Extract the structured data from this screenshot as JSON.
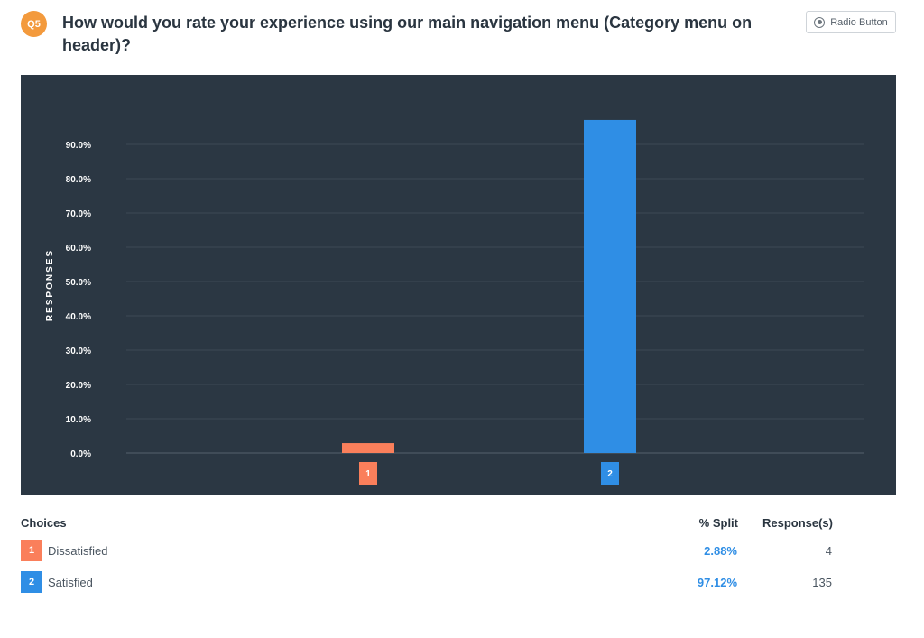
{
  "question": {
    "badge": "Q5",
    "title": "How would you rate your experience using our main navigation menu (Category menu on header)?",
    "type_label": "Radio Button",
    "type_icon": "radio-button-icon"
  },
  "chart_data": {
    "type": "bar",
    "categories": [
      "1",
      "2"
    ],
    "values": [
      2.88,
      97.12
    ],
    "colors": [
      "#fa7f5b",
      "#2f8ee5"
    ],
    "title": "",
    "xlabel": "",
    "ylabel": "RESPONSES",
    "ylim": [
      0,
      100
    ],
    "yticks": [
      0,
      10,
      20,
      30,
      40,
      50,
      60,
      70,
      80,
      90
    ],
    "ytick_labels": [
      "0.0%",
      "10.0%",
      "20.0%",
      "30.0%",
      "40.0%",
      "50.0%",
      "60.0%",
      "70.0%",
      "80.0%",
      "90.0%"
    ],
    "grid": true,
    "background": "#2b3743"
  },
  "table": {
    "headers": {
      "choices": "Choices",
      "split": "% Split",
      "responses": "Response(s)"
    },
    "rows": [
      {
        "num": "1",
        "label": "Dissatisfied",
        "split": "2.88%",
        "responses": "4",
        "color": "#fa7f5b"
      },
      {
        "num": "2",
        "label": "Satisfied",
        "split": "97.12%",
        "responses": "135",
        "color": "#2f8ee5"
      }
    ]
  }
}
